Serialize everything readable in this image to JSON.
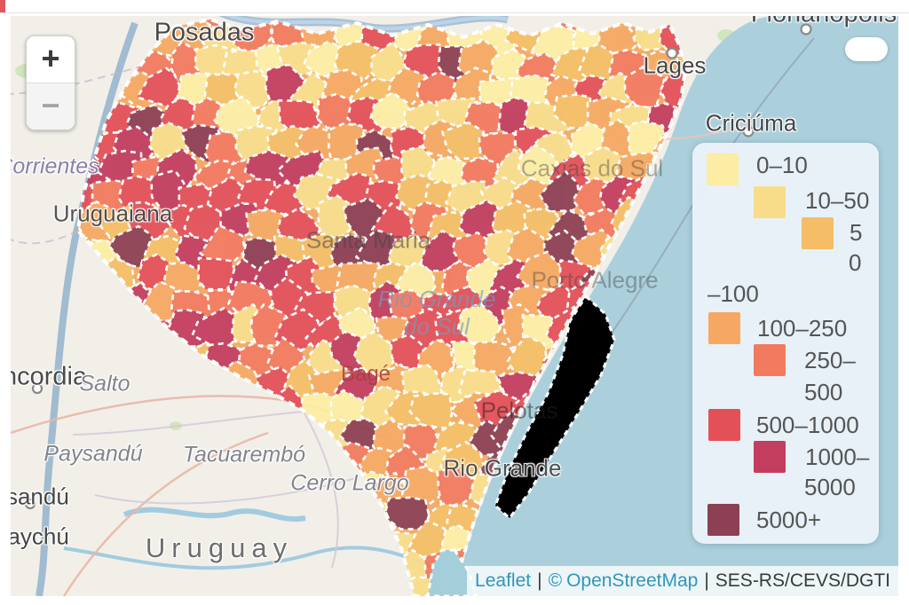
{
  "map": {
    "controls": {
      "zoom_in": "+",
      "zoom_out": "−"
    },
    "attribution": {
      "leaflet": "Leaflet",
      "divider": "|",
      "copyright": "©",
      "openstreetmap": "OpenStreetMap",
      "source": "SES-RS/CEVS/DGTI"
    }
  },
  "legend": {
    "items": [
      {
        "range": "0–10",
        "color": "#fceca4",
        "lines": [
          "0–10"
        ]
      },
      {
        "range": "10–50",
        "color": "#f9dc8a",
        "lines": [
          "10–50"
        ]
      },
      {
        "range": "50–100",
        "color": "#f4bd66",
        "lines": [
          "5",
          "0",
          "–100"
        ]
      },
      {
        "range": "100–250",
        "color": "#f6a862",
        "lines": [
          "100–250"
        ]
      },
      {
        "range": "250–500",
        "color": "#f27a5e",
        "lines": [
          "250–",
          "500"
        ]
      },
      {
        "range": "500–1000",
        "color": "#e35058",
        "lines": [
          "500–1000"
        ]
      },
      {
        "range": "1000–5000",
        "color": "#c23d5e",
        "lines": [
          "1000–",
          "5000"
        ]
      },
      {
        "range": "5000+",
        "color": "#8d4053",
        "lines": [
          "5000+"
        ]
      }
    ]
  },
  "map_labels": [
    {
      "id": "posadas",
      "text": "Posadas"
    },
    {
      "id": "florianopolis",
      "text": "Florianópolis"
    },
    {
      "id": "lages",
      "text": "Lages"
    },
    {
      "id": "criciuma",
      "text": "Criciúma"
    },
    {
      "id": "corrientes",
      "text": "Corrientes"
    },
    {
      "id": "uruguaiana",
      "text": "Uruguaiana"
    },
    {
      "id": "santa-maria",
      "text": "Santa Maria"
    },
    {
      "id": "caxias-do-sul",
      "text": "Caxias do Sul"
    },
    {
      "id": "porto-alegre",
      "text": "Porto Alegre"
    },
    {
      "id": "rio-grande-do-sul",
      "text": "Rio Grande do Sul"
    },
    {
      "id": "bage",
      "text": "Bagé"
    },
    {
      "id": "pelotas",
      "text": "Pelotas"
    },
    {
      "id": "rio-grande",
      "text": "Rio Grande"
    },
    {
      "id": "concordia",
      "text": "Concordia"
    },
    {
      "id": "salto",
      "text": "Salto"
    },
    {
      "id": "paysandu-region",
      "text": "Paysandú"
    },
    {
      "id": "paysandu-city",
      "text": "Paysandú"
    },
    {
      "id": "gualeguaychu",
      "text": "Gualeguaychú"
    },
    {
      "id": "tacuarembo",
      "text": "Tacuarembó"
    },
    {
      "id": "cerro-largo",
      "text": "Cerro Largo"
    },
    {
      "id": "uruguay",
      "text": "Uruguay"
    }
  ],
  "palette": {
    "land": "#f2efe9",
    "water": "#abd0dc",
    "river": "#9db9d3",
    "green": "#cde4b6",
    "cell_border": "#ffffff"
  }
}
